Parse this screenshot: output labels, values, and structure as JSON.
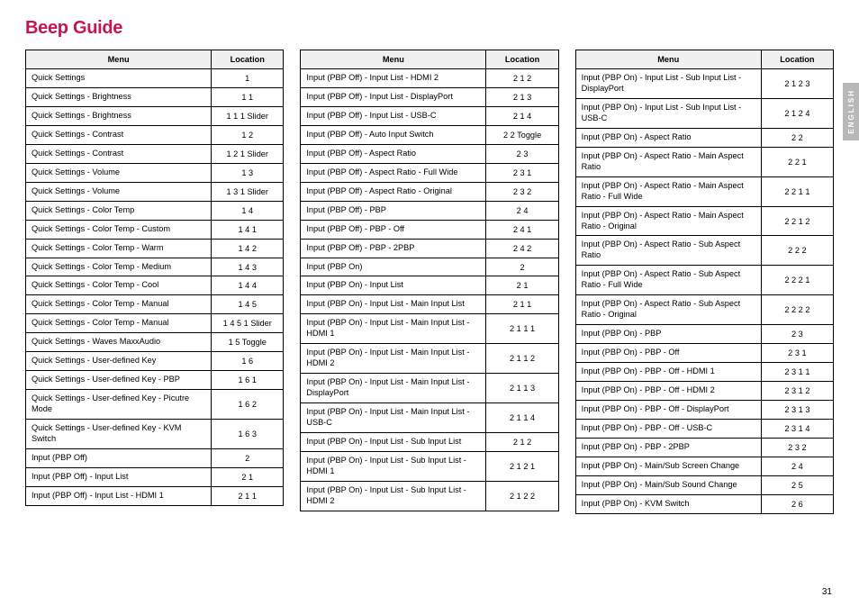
{
  "title": "Beep Guide",
  "sideTab": "ENGLISH",
  "pageNumber": "31",
  "headers": {
    "menu": "Menu",
    "location": "Location"
  },
  "col1": [
    {
      "menu": "Quick Settings",
      "loc": "1"
    },
    {
      "menu": "Quick Settings - Brightness",
      "loc": "1 1"
    },
    {
      "menu": "Quick Settings - Brightness",
      "loc": "1 1 1 Slider"
    },
    {
      "menu": "Quick Settings - Contrast",
      "loc": "1 2"
    },
    {
      "menu": "Quick Settings - Contrast",
      "loc": "1 2 1 Slider"
    },
    {
      "menu": "Quick Settings - Volume",
      "loc": "1 3"
    },
    {
      "menu": "Quick Settings - Volume",
      "loc": "1 3 1 Slider"
    },
    {
      "menu": "Quick Settings - Color Temp",
      "loc": "1 4"
    },
    {
      "menu": "Quick Settings - Color Temp - Custom",
      "loc": "1 4 1"
    },
    {
      "menu": "Quick Settings - Color Temp - Warm",
      "loc": "1 4 2"
    },
    {
      "menu": "Quick Settings - Color Temp - Medium",
      "loc": "1 4 3"
    },
    {
      "menu": "Quick Settings - Color Temp - Cool",
      "loc": "1 4 4"
    },
    {
      "menu": "Quick Settings - Color Temp - Manual",
      "loc": "1 4 5"
    },
    {
      "menu": "Quick Settings - Color Temp - Manual",
      "loc": "1 4 5 1 Slider"
    },
    {
      "menu": "Quick Settings - Waves MaxxAudio",
      "loc": "1 5 Toggle"
    },
    {
      "menu": "Quick Settings - User-defined Key",
      "loc": "1 6"
    },
    {
      "menu": "Quick Settings - User-defined Key - PBP",
      "loc": "1 6 1"
    },
    {
      "menu": "Quick Settings - User-defined Key - Picutre Mode",
      "loc": "1 6 2"
    },
    {
      "menu": "Quick Settings - User-defined Key - KVM Switch",
      "loc": "1 6 3"
    },
    {
      "menu": "Input (PBP Off)",
      "loc": "2"
    },
    {
      "menu": "Input (PBP Off) - Input List",
      "loc": "2 1"
    },
    {
      "menu": "Input (PBP Off) - Input List - HDMI 1",
      "loc": "2 1 1"
    }
  ],
  "col2": [
    {
      "menu": "Input (PBP Off) - Input List - HDMI 2",
      "loc": "2 1 2"
    },
    {
      "menu": "Input (PBP Off) - Input List - DisplayPort",
      "loc": "2 1 3"
    },
    {
      "menu": "Input (PBP Off) - Input List - USB-C",
      "loc": "2 1 4"
    },
    {
      "menu": "Input (PBP Off) - Auto Input Switch",
      "loc": "2 2 Toggle"
    },
    {
      "menu": "Input (PBP Off) - Aspect Ratio",
      "loc": "2 3"
    },
    {
      "menu": "Input (PBP Off) - Aspect Ratio - Full Wide",
      "loc": "2 3 1"
    },
    {
      "menu": "Input (PBP Off) - Aspect Ratio - Original",
      "loc": "2 3 2"
    },
    {
      "menu": "Input (PBP Off) - PBP",
      "loc": "2 4"
    },
    {
      "menu": "Input (PBP Off) - PBP - Off",
      "loc": "2 4 1"
    },
    {
      "menu": "Input (PBP Off) - PBP - 2PBP",
      "loc": "2 4 2"
    },
    {
      "menu": "Input (PBP On)",
      "loc": "2"
    },
    {
      "menu": "Input (PBP On) - Input List",
      "loc": "2 1"
    },
    {
      "menu": "Input (PBP On) - Input List - Main Input List",
      "loc": "2 1 1"
    },
    {
      "menu": "Input (PBP On) - Input List - Main Input List - HDMI 1",
      "loc": "2 1 1 1"
    },
    {
      "menu": "Input (PBP On) - Input List - Main Input List - HDMI 2",
      "loc": "2 1 1 2"
    },
    {
      "menu": "Input (PBP On) - Input List - Main Input List - DisplayPort",
      "loc": "2 1 1 3"
    },
    {
      "menu": "Input (PBP On) - Input List - Main Input List - USB-C",
      "loc": "2 1 1 4"
    },
    {
      "menu": "Input (PBP On) - Input List - Sub Input List",
      "loc": "2 1 2"
    },
    {
      "menu": "Input (PBP On) - Input List - Sub Input List - HDMI 1",
      "loc": "2 1 2 1"
    },
    {
      "menu": "Input (PBP On) - Input List - Sub Input List - HDMI 2",
      "loc": "2 1 2 2"
    }
  ],
  "col3": [
    {
      "menu": "Input (PBP On) - Input List - Sub Input List - DisplayPort",
      "loc": "2 1 2 3"
    },
    {
      "menu": "Input (PBP On) - Input List - Sub Input List - USB-C",
      "loc": "2 1 2 4"
    },
    {
      "menu": "Input (PBP On) - Aspect Ratio",
      "loc": "2 2"
    },
    {
      "menu": "Input (PBP On) - Aspect Ratio - Main Aspect Ratio",
      "loc": "2 2 1"
    },
    {
      "menu": "Input (PBP On) - Aspect Ratio - Main Aspect Ratio - Full Wide",
      "loc": "2 2 1 1"
    },
    {
      "menu": "Input (PBP On) - Aspect Ratio - Main Aspect Ratio - Original",
      "loc": "2 2 1 2"
    },
    {
      "menu": "Input (PBP On) - Aspect Ratio - Sub Aspect Ratio",
      "loc": "2 2 2"
    },
    {
      "menu": "Input (PBP On) - Aspect Ratio - Sub Aspect Ratio - Full Wide",
      "loc": "2 2 2 1"
    },
    {
      "menu": "Input (PBP On) - Aspect Ratio - Sub Aspect Ratio - Original",
      "loc": "2 2 2 2"
    },
    {
      "menu": "Input (PBP On) - PBP",
      "loc": "2 3"
    },
    {
      "menu": "Input (PBP On) - PBP - Off",
      "loc": "2 3 1"
    },
    {
      "menu": "Input (PBP On) - PBP - Off - HDMI 1",
      "loc": "2 3 1 1"
    },
    {
      "menu": "Input (PBP On) - PBP - Off - HDMI 2",
      "loc": "2 3 1 2"
    },
    {
      "menu": "Input (PBP On) - PBP - Off - DisplayPort",
      "loc": "2 3 1 3"
    },
    {
      "menu": "Input (PBP On) - PBP - Off - USB-C",
      "loc": "2 3 1 4"
    },
    {
      "menu": "Input (PBP On) - PBP - 2PBP",
      "loc": "2 3 2"
    },
    {
      "menu": "Input (PBP On) - Main/Sub Screen Change",
      "loc": "2 4"
    },
    {
      "menu": "Input (PBP On) - Main/Sub Sound Change",
      "loc": "2 5"
    },
    {
      "menu": "Input (PBP On) - KVM Switch",
      "loc": "2 6"
    }
  ]
}
